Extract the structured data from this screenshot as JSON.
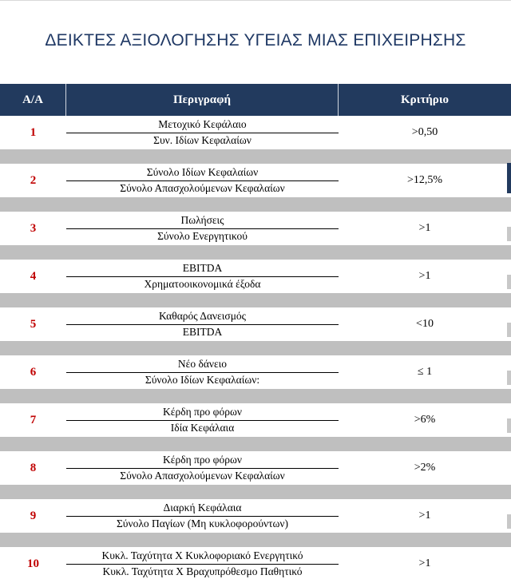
{
  "title": "ΔΕΙΚΤΕΣ ΑΞΙΟΛΟΓΗΣΗΣ ΥΓΕΙΑΣ ΜΙΑΣ ΕΠΙΧΕΙΡΗΣΗΣ",
  "header": {
    "aa": "Α/Α",
    "description": "Περιγραφή",
    "criterion": "Κριτήριο"
  },
  "rows": [
    {
      "num": "1",
      "numerator": "Μετοχικό Κεφάλαιο",
      "denominator": "Συν. Ιδίων Κεφαλαίων",
      "criterion": ">0,50"
    },
    {
      "num": "2",
      "numerator": "Σύνολο Ιδίων Κεφαλαίων",
      "denominator": "Σύνολο Απασχολούμενων Κεφαλαίων",
      "criterion": ">12,5%"
    },
    {
      "num": "3",
      "numerator": "Πωλήσεις",
      "denominator": "Σύνολο Ενεργητικού",
      "criterion": ">1"
    },
    {
      "num": "4",
      "numerator": "EBITDA",
      "denominator": "Χρηματοοικονομικά έξοδα",
      "criterion": ">1"
    },
    {
      "num": "5",
      "numerator": "Καθαρός Δανεισμός",
      "denominator": "EBITDA",
      "criterion": "<10"
    },
    {
      "num": "6",
      "numerator": "Νέο δάνειο",
      "denominator": "Σύνολο Ιδίων Κεφαλαίων:",
      "criterion": "≤ 1"
    },
    {
      "num": "7",
      "numerator": "Κέρδη προ φόρων",
      "denominator": "Ιδία Κεφάλαια",
      "criterion": ">6%"
    },
    {
      "num": "8",
      "numerator": "Κέρδη προ φόρων",
      "denominator": "Σύνολο Απασχολούμενων Κεφαλαίων",
      "criterion": ">2%"
    },
    {
      "num": "9",
      "numerator": "Διαρκή Κεφάλαια",
      "denominator": "Σύνολο Παγίων (Μη κυκλοφορούντων)",
      "criterion": ">1"
    },
    {
      "num": "10",
      "numerator": "Κυκλ. Ταχύτητα Χ Κυκλοφοριακό Ενεργητικό",
      "denominator": "Κυκλ. Ταχύτητα Χ Βραχυπρόθεσμο Παθητικό",
      "criterion": ">1"
    }
  ]
}
